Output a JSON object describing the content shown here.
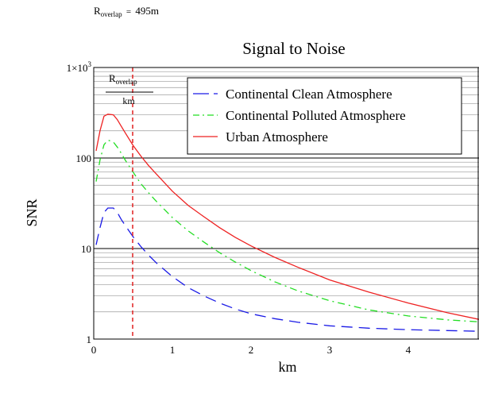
{
  "overlap_readout": {
    "symbol": "R",
    "subscript": "overlap",
    "equals": "=",
    "value": "495",
    "unit": "m"
  },
  "marker_label": {
    "numerator_symbol": "R",
    "numerator_subscript": "overlap",
    "denominator": "km"
  },
  "colors": {
    "clean": "#1a1ae6",
    "polluted": "#22dd22",
    "urban": "#ee2222",
    "marker": "#e02020",
    "grid": "#aaaaaa"
  },
  "chart_data": {
    "type": "line",
    "title": "Signal to Noise",
    "xlabel": "km",
    "ylabel": "SNR",
    "xlim": [
      0,
      4.9
    ],
    "ylim": [
      1,
      1000
    ],
    "y_scale": "log",
    "grid": true,
    "legend_position": "top-right",
    "x_ticks": [
      0,
      1,
      2,
      3,
      4
    ],
    "x_tick_labels": [
      "0",
      "1",
      "2",
      "3",
      "4"
    ],
    "y_ticks": [
      1,
      10,
      100,
      1000
    ],
    "y_tick_labels": [
      "1",
      "10",
      "100",
      "1×10"
    ],
    "y_top_tick_exponent": "3",
    "vertical_marker_x": 0.495,
    "x": [
      0.03,
      0.08,
      0.13,
      0.18,
      0.25,
      0.3,
      0.35,
      0.4,
      0.5,
      0.6,
      0.7,
      0.8,
      1.0,
      1.2,
      1.4,
      1.6,
      1.8,
      2.0,
      2.3,
      2.6,
      3.0,
      3.5,
      4.0,
      4.5,
      4.9
    ],
    "series": [
      {
        "name": "Continental Clean Atmosphere",
        "style": "dashed",
        "values": [
          11,
          17,
          25,
          28,
          28,
          25,
          21,
          18,
          13.5,
          10.5,
          8.4,
          6.9,
          4.9,
          3.7,
          3.0,
          2.5,
          2.15,
          1.9,
          1.68,
          1.53,
          1.4,
          1.32,
          1.27,
          1.24,
          1.22
        ]
      },
      {
        "name": "Continental Polluted Atmosphere",
        "style": "dash-dot",
        "values": [
          55,
          95,
          140,
          158,
          150,
          132,
          113,
          95,
          70,
          52,
          41,
          33,
          22,
          15.7,
          11.8,
          9.0,
          7.1,
          5.7,
          4.3,
          3.4,
          2.65,
          2.1,
          1.8,
          1.63,
          1.55
        ]
      },
      {
        "name": "Urban Atmosphere",
        "style": "solid",
        "values": [
          120,
          200,
          290,
          305,
          300,
          265,
          225,
          190,
          138,
          105,
          82,
          66,
          43,
          30,
          22.5,
          17,
          13.3,
          10.7,
          8.0,
          6.2,
          4.5,
          3.3,
          2.5,
          1.95,
          1.65
        ]
      }
    ]
  }
}
